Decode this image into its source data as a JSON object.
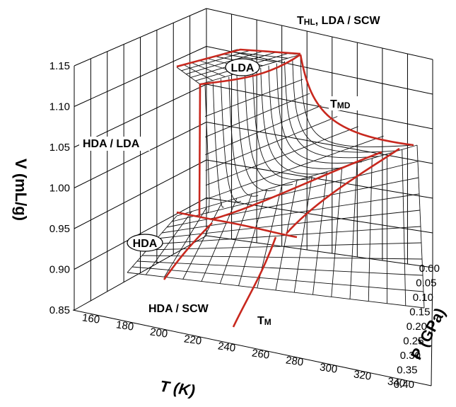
{
  "chart_data": {
    "type": "surface3d",
    "title": "",
    "axes": {
      "z": {
        "label": "V (mL/g)",
        "ticks": [
          "0.85",
          "0.90",
          "0.95",
          "1.00",
          "1.05",
          "1.10",
          "1.15"
        ],
        "range": [
          0.85,
          1.15
        ]
      },
      "x": {
        "label": "T (K)",
        "ticks": [
          "160",
          "180",
          "200",
          "220",
          "240",
          "260",
          "280",
          "300",
          "320",
          "340"
        ],
        "range": [
          160,
          340
        ]
      },
      "y": {
        "label": "P (GPa)",
        "ticks": [
          "0.00",
          "0.05",
          "0.10",
          "0.15",
          "0.20",
          "0.25",
          "0.30",
          "0.35",
          "0.40"
        ],
        "range": [
          0.0,
          0.4
        ]
      }
    },
    "grid": true,
    "phase_labels": {
      "lda": "LDA",
      "hda": "HDA"
    },
    "annotations": {
      "thl": "T",
      "thl_sub": "HL",
      "thl_rest": ", LDA / SCW",
      "tmd": "T",
      "tmd_sub": "MD",
      "hda_lda": "HDA / LDA",
      "hda_scw": "HDA / SCW",
      "tm": "T",
      "tm_sub": "M"
    },
    "colors": {
      "boundary": "#c8281e",
      "mesh": "#111111"
    }
  }
}
